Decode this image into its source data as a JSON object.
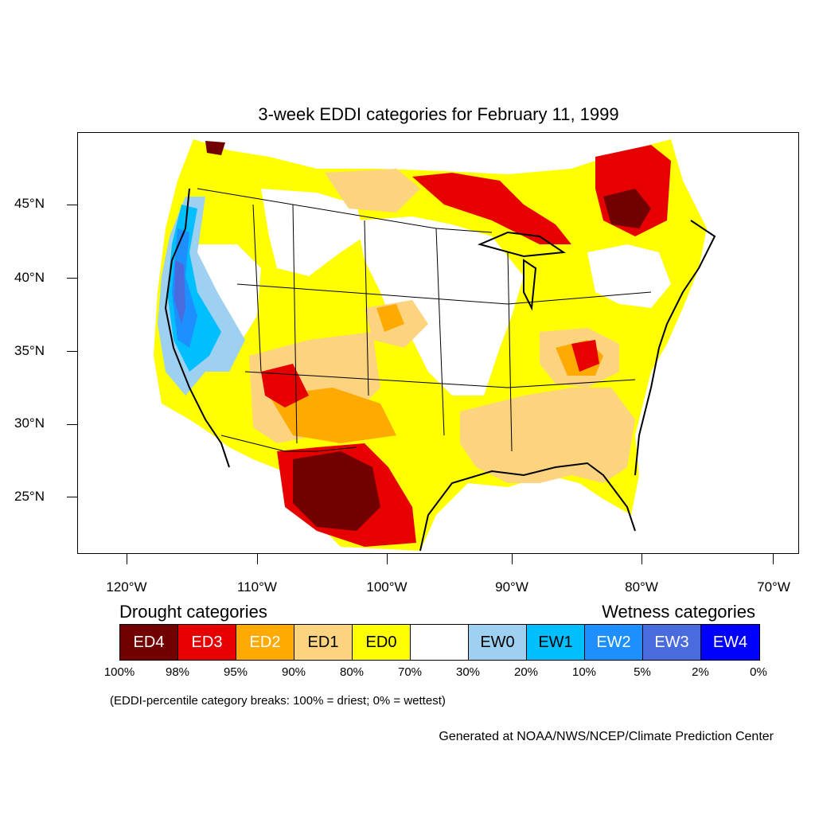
{
  "title": "3-week EDDI categories for February 11, 1999",
  "latitude_labels": [
    "45°N",
    "40°N",
    "35°N",
    "30°N",
    "25°N"
  ],
  "longitude_labels": [
    "120°W",
    "110°W",
    "100°W",
    "90°W",
    "80°W",
    "70°W"
  ],
  "legend": {
    "drought_heading": "Drought categories",
    "wetness_heading": "Wetness categories",
    "categories": [
      {
        "label": "ED4",
        "color": "#730000",
        "text_color": "#ffffff"
      },
      {
        "label": "ED3",
        "color": "#e60000",
        "text_color": "#ffffff"
      },
      {
        "label": "ED2",
        "color": "#ffaa00",
        "text_color": "#ffffff"
      },
      {
        "label": "ED1",
        "color": "#fcd37f",
        "text_color": "#000000"
      },
      {
        "label": "ED0",
        "color": "#ffff00",
        "text_color": "#000000"
      },
      {
        "label": "",
        "color": "#ffffff",
        "text_color": "#000000"
      },
      {
        "label": "EW0",
        "color": "#9dd0f1",
        "text_color": "#000000"
      },
      {
        "label": "EW1",
        "color": "#00bfff",
        "text_color": "#000000"
      },
      {
        "label": "EW2",
        "color": "#1e8fff",
        "text_color": "#ffffff"
      },
      {
        "label": "EW3",
        "color": "#4a6bdd",
        "text_color": "#ffffff"
      },
      {
        "label": "EW4",
        "color": "#0000ff",
        "text_color": "#ffffff"
      }
    ],
    "percentile_breaks": [
      "100%",
      "98%",
      "95%",
      "90%",
      "80%",
      "70%",
      "30%",
      "20%",
      "10%",
      "5%",
      "2%",
      "0%"
    ]
  },
  "note": "(EDDI-percentile category breaks: 100% = driest; 0% = wettest)",
  "credit": "Generated at NOAA/NWS/NCEP/Climate Prediction Center"
}
